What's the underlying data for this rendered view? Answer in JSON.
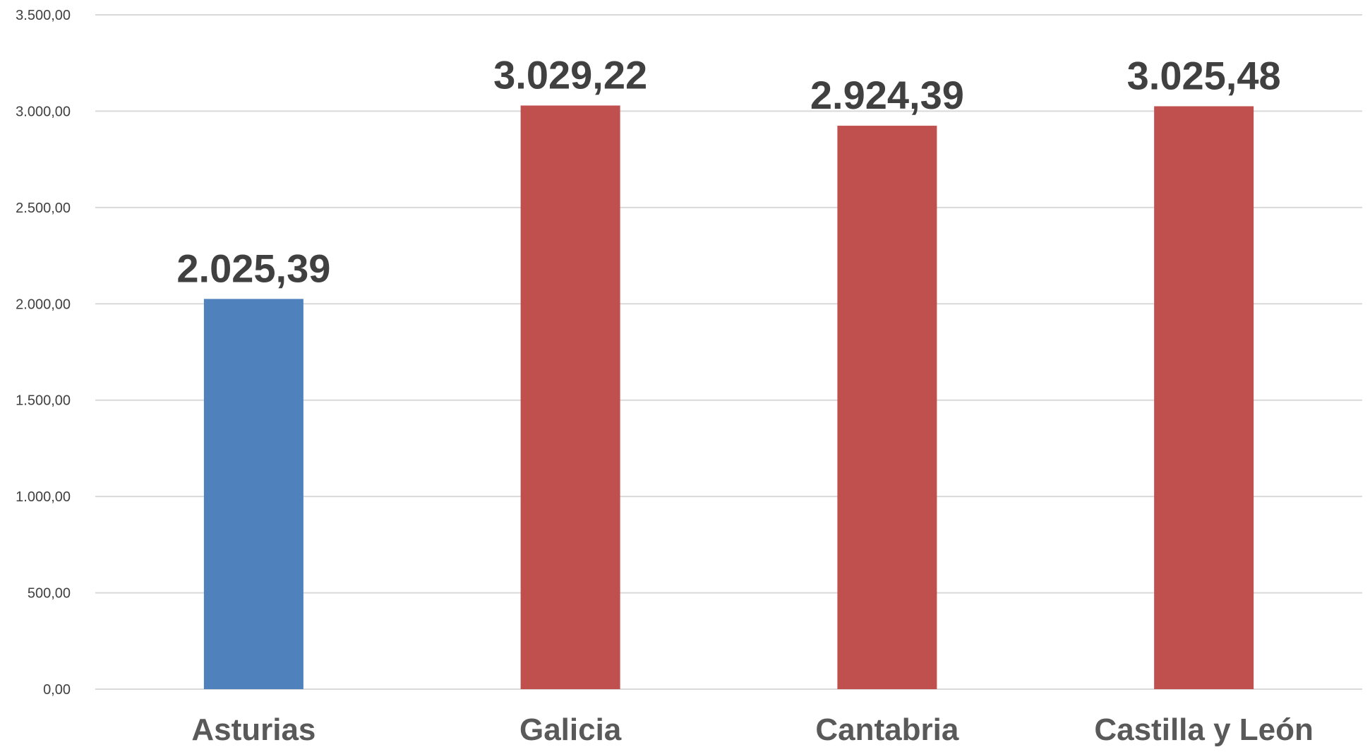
{
  "chart_data": {
    "type": "bar",
    "categories": [
      "Asturias",
      "Galicia",
      "Cantabria",
      "Castilla y León"
    ],
    "values": [
      2025.39,
      3029.22,
      2924.39,
      3025.48
    ],
    "value_labels": [
      "2.025,39",
      "3.029,22",
      "2.924,39",
      "3.025,48"
    ],
    "bar_colors": [
      "#4f81bd",
      "#c0504d",
      "#c0504d",
      "#c0504d"
    ],
    "ylim": [
      0,
      3500
    ],
    "yticks": [
      0,
      500,
      1000,
      1500,
      2000,
      2500,
      3000,
      3500
    ],
    "ytick_labels": [
      "0,00",
      "500,00",
      "1.000,00",
      "1.500,00",
      "2.000,00",
      "2.500,00",
      "3.000,00",
      "3.500,00"
    ],
    "grid": true,
    "legend": "none"
  }
}
